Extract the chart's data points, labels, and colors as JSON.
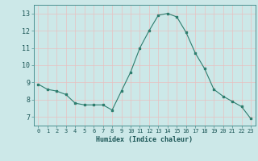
{
  "x": [
    0,
    1,
    2,
    3,
    4,
    5,
    6,
    7,
    8,
    9,
    10,
    11,
    12,
    13,
    14,
    15,
    16,
    17,
    18,
    19,
    20,
    21,
    22,
    23
  ],
  "y": [
    8.9,
    8.6,
    8.5,
    8.3,
    7.8,
    7.7,
    7.7,
    7.7,
    7.4,
    8.5,
    9.6,
    11.0,
    12.0,
    12.9,
    13.0,
    12.8,
    11.9,
    10.7,
    9.8,
    8.6,
    8.2,
    7.9,
    7.6,
    6.9
  ],
  "xlabel": "Humidex (Indice chaleur)",
  "ylim": [
    6.5,
    13.5
  ],
  "xlim": [
    -0.5,
    23.5
  ],
  "yticks": [
    7,
    8,
    9,
    10,
    11,
    12,
    13
  ],
  "xticks": [
    0,
    1,
    2,
    3,
    4,
    5,
    6,
    7,
    8,
    9,
    10,
    11,
    12,
    13,
    14,
    15,
    16,
    17,
    18,
    19,
    20,
    21,
    22,
    23
  ],
  "xtick_labels": [
    "0",
    "1",
    "2",
    "3",
    "4",
    "5",
    "6",
    "7",
    "8",
    "9",
    "10",
    "11",
    "12",
    "13",
    "14",
    "15",
    "16",
    "17",
    "18",
    "19",
    "20",
    "21",
    "22",
    "23"
  ],
  "line_color": "#2e7d6e",
  "marker_color": "#2e7d6e",
  "bg_color": "#cce8e8",
  "red_grid_color": "#e8c0c0",
  "axis_color": "#2e7d6e"
}
